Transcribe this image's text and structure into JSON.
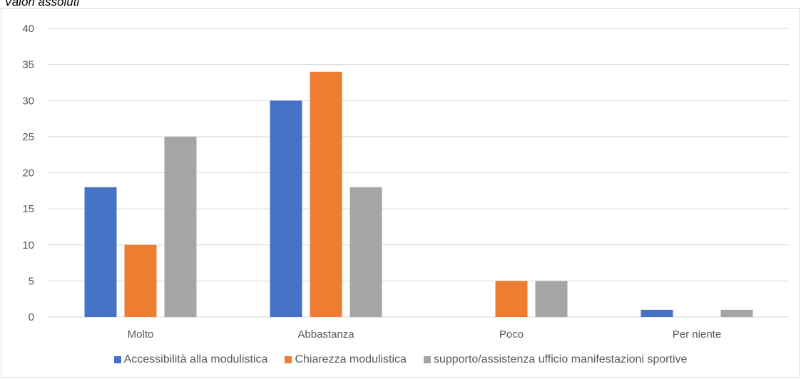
{
  "caption": "Valori assoluti",
  "chart_data": {
    "type": "bar",
    "categories": [
      "Molto",
      "Abbastanza",
      "Poco",
      "Per niente"
    ],
    "series": [
      {
        "name": "Accessibilità alla modulistica",
        "color": "#4472c4",
        "values": [
          18,
          30,
          0,
          1
        ]
      },
      {
        "name": "Chiarezza modulistica",
        "color": "#ed7d31",
        "values": [
          10,
          34,
          5,
          0
        ]
      },
      {
        "name": "supporto/assistenza ufficio manifestazioni sportive",
        "color": "#a5a5a5",
        "values": [
          25,
          18,
          5,
          1
        ]
      }
    ],
    "ylim": [
      0,
      40
    ],
    "yticks": [
      0,
      5,
      10,
      15,
      20,
      25,
      30,
      35,
      40
    ],
    "grid": true,
    "legend_position": "bottom",
    "title": "",
    "xlabel": "",
    "ylabel": ""
  }
}
